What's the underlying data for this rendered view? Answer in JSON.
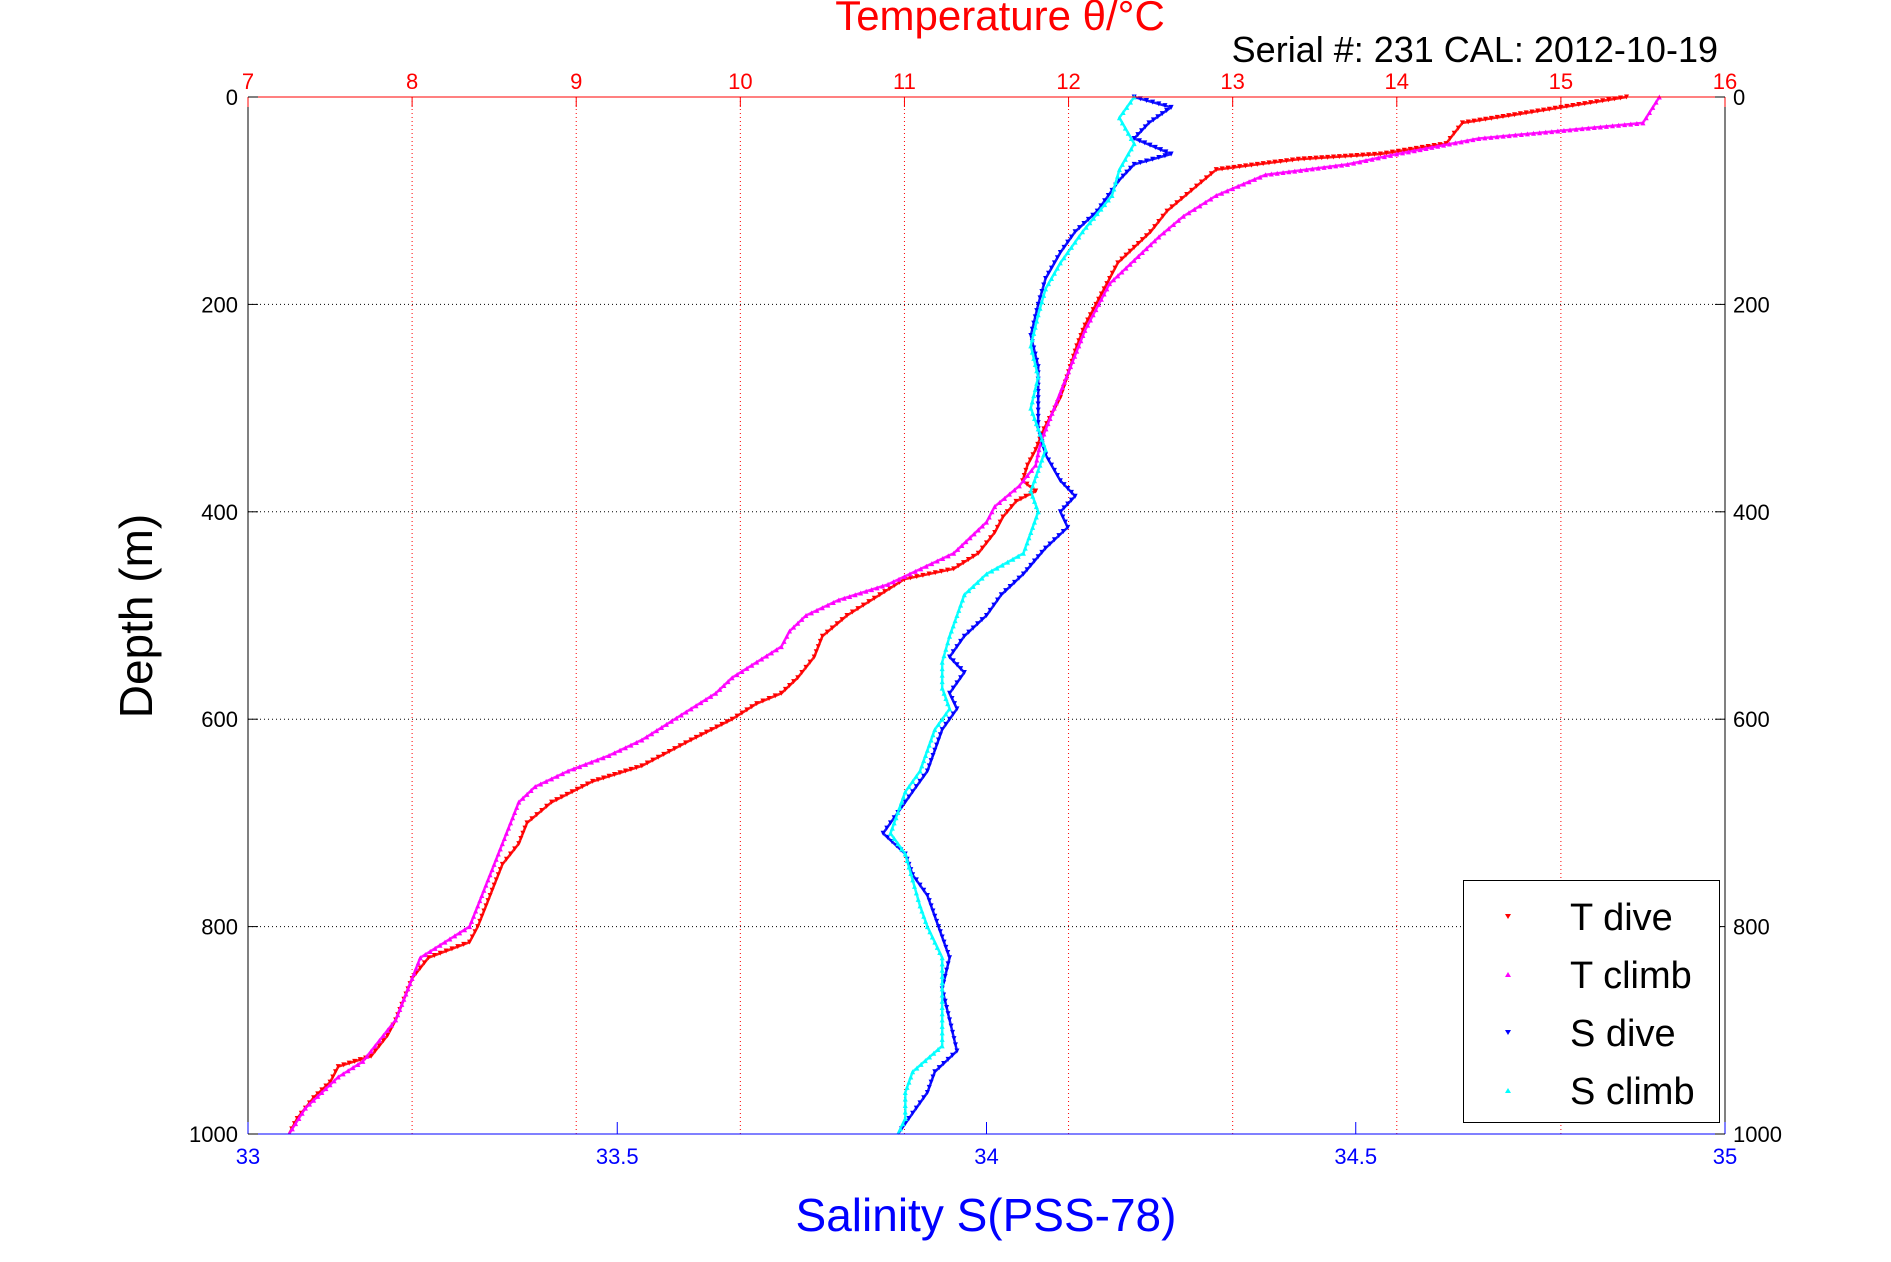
{
  "chart_data": {
    "type": "scatter",
    "title": "Temperature θ/°C",
    "subtitle": "Serial #: 231  CAL: 2012-10-19",
    "xlabel": "Salinity S(PSS-78)",
    "ylabel": "Depth (m)",
    "x2lim": [
      7,
      16
    ],
    "xlim": [
      33,
      35
    ],
    "ylim": [
      0,
      1000
    ],
    "y_reversed": true,
    "grid": true,
    "legend_position": "bottom-right",
    "x2_ticks": [
      "7",
      "8",
      "9",
      "10",
      "11",
      "12",
      "13",
      "14",
      "15",
      "16"
    ],
    "x_ticks": [
      "33",
      "33.5",
      "34",
      "34.5",
      "35"
    ],
    "y_ticks": [
      "0",
      "200",
      "400",
      "600",
      "800",
      "1000"
    ],
    "series": [
      {
        "name": "T dive",
        "axis": "temperature",
        "color": "#ff0000",
        "marker": "triangle-down",
        "points": [
          [
            15.4,
            0
          ],
          [
            15.0,
            10
          ],
          [
            14.4,
            25
          ],
          [
            14.3,
            45
          ],
          [
            13.9,
            55
          ],
          [
            13.4,
            60
          ],
          [
            12.9,
            70
          ],
          [
            12.75,
            90
          ],
          [
            12.6,
            110
          ],
          [
            12.5,
            130
          ],
          [
            12.4,
            145
          ],
          [
            12.3,
            160
          ],
          [
            12.25,
            175
          ],
          [
            12.2,
            190
          ],
          [
            12.15,
            205
          ],
          [
            12.1,
            220
          ],
          [
            12.05,
            240
          ],
          [
            12.0,
            265
          ],
          [
            11.95,
            290
          ],
          [
            11.9,
            305
          ],
          [
            11.85,
            320
          ],
          [
            11.8,
            340
          ],
          [
            11.75,
            355
          ],
          [
            11.72,
            370
          ],
          [
            11.8,
            380
          ],
          [
            11.68,
            390
          ],
          [
            11.6,
            405
          ],
          [
            11.55,
            420
          ],
          [
            11.45,
            440
          ],
          [
            11.3,
            455
          ],
          [
            11.0,
            465
          ],
          [
            10.85,
            480
          ],
          [
            10.65,
            500
          ],
          [
            10.5,
            520
          ],
          [
            10.45,
            540
          ],
          [
            10.35,
            560
          ],
          [
            10.25,
            575
          ],
          [
            10.1,
            585
          ],
          [
            9.95,
            600
          ],
          [
            9.7,
            620
          ],
          [
            9.4,
            645
          ],
          [
            9.1,
            660
          ],
          [
            8.85,
            680
          ],
          [
            8.7,
            700
          ],
          [
            8.65,
            720
          ],
          [
            8.55,
            740
          ],
          [
            8.5,
            760
          ],
          [
            8.45,
            780
          ],
          [
            8.4,
            800
          ],
          [
            8.35,
            815
          ],
          [
            8.1,
            830
          ],
          [
            8.0,
            850
          ],
          [
            7.95,
            870
          ],
          [
            7.9,
            890
          ],
          [
            7.85,
            905
          ],
          [
            7.75,
            925
          ],
          [
            7.55,
            935
          ],
          [
            7.5,
            950
          ],
          [
            7.4,
            965
          ],
          [
            7.3,
            985
          ],
          [
            7.25,
            1000
          ]
        ]
      },
      {
        "name": "T climb",
        "axis": "temperature",
        "color": "#ff00ff",
        "marker": "triangle-up",
        "points": [
          [
            15.6,
            0
          ],
          [
            15.5,
            25
          ],
          [
            14.5,
            40
          ],
          [
            14.0,
            55
          ],
          [
            13.7,
            65
          ],
          [
            13.2,
            75
          ],
          [
            12.9,
            95
          ],
          [
            12.7,
            115
          ],
          [
            12.55,
            135
          ],
          [
            12.45,
            150
          ],
          [
            12.35,
            165
          ],
          [
            12.25,
            180
          ],
          [
            12.2,
            195
          ],
          [
            12.15,
            210
          ],
          [
            12.1,
            225
          ],
          [
            12.05,
            245
          ],
          [
            12.0,
            265
          ],
          [
            11.95,
            285
          ],
          [
            11.9,
            305
          ],
          [
            11.85,
            325
          ],
          [
            11.82,
            340
          ],
          [
            11.8,
            355
          ],
          [
            11.7,
            375
          ],
          [
            11.55,
            395
          ],
          [
            11.5,
            410
          ],
          [
            11.4,
            425
          ],
          [
            11.3,
            440
          ],
          [
            11.1,
            455
          ],
          [
            10.9,
            470
          ],
          [
            10.6,
            485
          ],
          [
            10.4,
            500
          ],
          [
            10.3,
            515
          ],
          [
            10.25,
            530
          ],
          [
            10.1,
            545
          ],
          [
            9.95,
            560
          ],
          [
            9.85,
            575
          ],
          [
            9.7,
            590
          ],
          [
            9.55,
            605
          ],
          [
            9.4,
            620
          ],
          [
            9.2,
            635
          ],
          [
            8.95,
            650
          ],
          [
            8.75,
            665
          ],
          [
            8.65,
            680
          ],
          [
            8.6,
            700
          ],
          [
            8.55,
            720
          ],
          [
            8.5,
            740
          ],
          [
            8.45,
            760
          ],
          [
            8.4,
            780
          ],
          [
            8.35,
            800
          ],
          [
            8.2,
            815
          ],
          [
            8.05,
            830
          ],
          [
            8.0,
            850
          ],
          [
            7.95,
            870
          ],
          [
            7.9,
            890
          ],
          [
            7.8,
            910
          ],
          [
            7.7,
            930
          ],
          [
            7.55,
            945
          ],
          [
            7.45,
            960
          ],
          [
            7.35,
            975
          ],
          [
            7.25,
            1000
          ]
        ]
      },
      {
        "name": "S dive",
        "axis": "salinity",
        "color": "#0000ff",
        "marker": "triangle-down",
        "points": [
          [
            34.2,
            0
          ],
          [
            34.25,
            10
          ],
          [
            34.22,
            25
          ],
          [
            34.2,
            40
          ],
          [
            34.25,
            55
          ],
          [
            34.2,
            65
          ],
          [
            34.18,
            80
          ],
          [
            34.15,
            110
          ],
          [
            34.12,
            130
          ],
          [
            34.1,
            150
          ],
          [
            34.08,
            175
          ],
          [
            34.07,
            200
          ],
          [
            34.06,
            230
          ],
          [
            34.07,
            260
          ],
          [
            34.07,
            290
          ],
          [
            34.07,
            320
          ],
          [
            34.08,
            345
          ],
          [
            34.1,
            370
          ],
          [
            34.12,
            385
          ],
          [
            34.1,
            400
          ],
          [
            34.11,
            415
          ],
          [
            34.08,
            435
          ],
          [
            34.05,
            460
          ],
          [
            34.02,
            480
          ],
          [
            34.0,
            500
          ],
          [
            33.97,
            520
          ],
          [
            33.95,
            540
          ],
          [
            33.97,
            555
          ],
          [
            33.95,
            575
          ],
          [
            33.96,
            590
          ],
          [
            33.94,
            610
          ],
          [
            33.93,
            630
          ],
          [
            33.92,
            650
          ],
          [
            33.9,
            670
          ],
          [
            33.88,
            690
          ],
          [
            33.86,
            710
          ],
          [
            33.89,
            730
          ],
          [
            33.9,
            750
          ],
          [
            33.92,
            770
          ],
          [
            33.93,
            790
          ],
          [
            33.94,
            810
          ],
          [
            33.95,
            830
          ],
          [
            33.94,
            860
          ],
          [
            33.95,
            890
          ],
          [
            33.96,
            920
          ],
          [
            33.93,
            940
          ],
          [
            33.92,
            960
          ],
          [
            33.9,
            980
          ],
          [
            33.88,
            1000
          ]
        ]
      },
      {
        "name": "S climb",
        "axis": "salinity",
        "color": "#00ffff",
        "marker": "triangle-up",
        "points": [
          [
            34.2,
            0
          ],
          [
            34.18,
            20
          ],
          [
            34.2,
            45
          ],
          [
            34.18,
            70
          ],
          [
            34.17,
            95
          ],
          [
            34.13,
            130
          ],
          [
            34.1,
            160
          ],
          [
            34.08,
            185
          ],
          [
            34.07,
            210
          ],
          [
            34.06,
            240
          ],
          [
            34.07,
            270
          ],
          [
            34.06,
            300
          ],
          [
            34.07,
            320
          ],
          [
            34.08,
            340
          ],
          [
            34.07,
            360
          ],
          [
            34.06,
            380
          ],
          [
            34.07,
            400
          ],
          [
            34.06,
            420
          ],
          [
            34.05,
            440
          ],
          [
            34.0,
            460
          ],
          [
            33.97,
            480
          ],
          [
            33.96,
            500
          ],
          [
            33.95,
            520
          ],
          [
            33.94,
            545
          ],
          [
            33.94,
            570
          ],
          [
            33.95,
            590
          ],
          [
            33.93,
            610
          ],
          [
            33.92,
            630
          ],
          [
            33.91,
            650
          ],
          [
            33.89,
            670
          ],
          [
            33.88,
            690
          ],
          [
            33.87,
            710
          ],
          [
            33.89,
            730
          ],
          [
            33.9,
            755
          ],
          [
            33.91,
            780
          ],
          [
            33.92,
            800
          ],
          [
            33.94,
            830
          ],
          [
            33.94,
            860
          ],
          [
            33.94,
            890
          ],
          [
            33.94,
            915
          ],
          [
            33.9,
            940
          ],
          [
            33.89,
            960
          ],
          [
            33.89,
            985
          ],
          [
            33.88,
            1000
          ]
        ]
      }
    ]
  }
}
